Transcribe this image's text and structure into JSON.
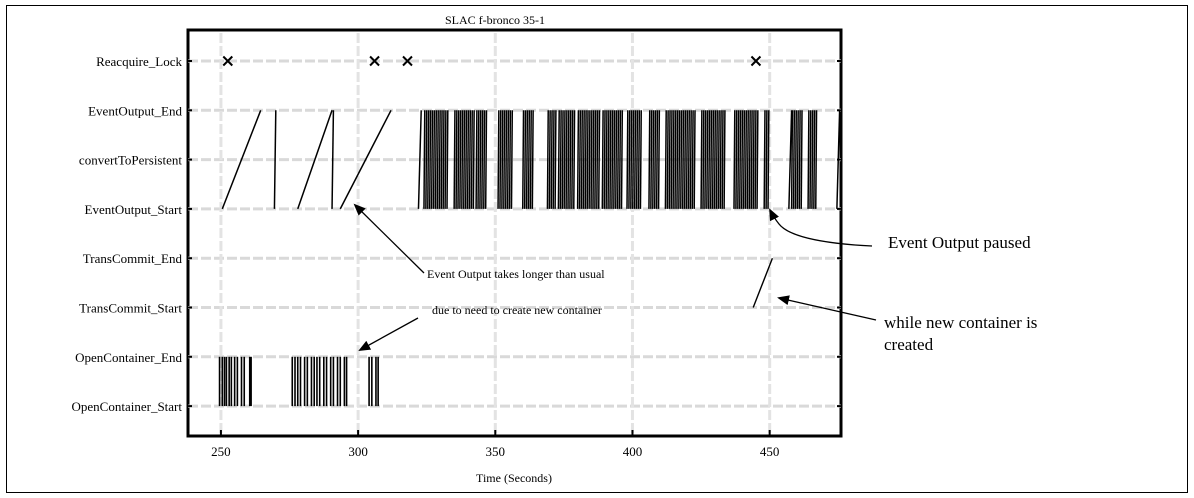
{
  "chart_data": {
    "type": "timeline",
    "title": "SLAC f-bronco 35-1",
    "xlabel": "Time (Seconds)",
    "ylabel": "",
    "xlim": [
      238,
      476
    ],
    "xticks": [
      250,
      300,
      350,
      400,
      450
    ],
    "categories": [
      "Reacquire_Lock",
      "EventOutput_End",
      "convertToPersistent",
      "EventOutput_Start",
      "TransCommit_End",
      "TransCommit_Start",
      "OpenContainer_End",
      "OpenContainer_Start"
    ],
    "reacquire_lock_x": [
      252.5,
      306,
      318,
      445
    ],
    "open_container_events": [
      249.5,
      250.5,
      251.3,
      252,
      253,
      253.8,
      255,
      256,
      257.5,
      258.5,
      260.5,
      261,
      276,
      277,
      278,
      279,
      280.5,
      281.5,
      283,
      284,
      285,
      286,
      287.5,
      288.5,
      290,
      291,
      292.5,
      293.5,
      295,
      295.8,
      304,
      305,
      306.5,
      307.3
    ],
    "event_output_transitions": [
      [
        250.5,
        264.5
      ],
      [
        269.5,
        270
      ],
      [
        278,
        290.5
      ],
      [
        290.5,
        291
      ],
      [
        293.5,
        312
      ],
      [
        322,
        323
      ],
      [
        457,
        458
      ],
      [
        474.5,
        475.5
      ]
    ],
    "event_output_bursts": [
      [
        324,
        333
      ],
      [
        335,
        342
      ],
      [
        343,
        347
      ],
      [
        351,
        356
      ],
      [
        360,
        364
      ],
      [
        369,
        372
      ],
      [
        373,
        379
      ],
      [
        380,
        388
      ],
      [
        389,
        396
      ],
      [
        398,
        403
      ],
      [
        406,
        410
      ],
      [
        412,
        423
      ],
      [
        425,
        434
      ],
      [
        437,
        446
      ],
      [
        448,
        449.5
      ],
      [
        458,
        462
      ],
      [
        464,
        467
      ]
    ],
    "trans_commit_transitions": [
      [
        444,
        451
      ]
    ],
    "annotations": [
      "Event Output takes longer than usual",
      "due to need to create new container",
      "Event Output paused",
      "while new container is",
      "created"
    ]
  }
}
